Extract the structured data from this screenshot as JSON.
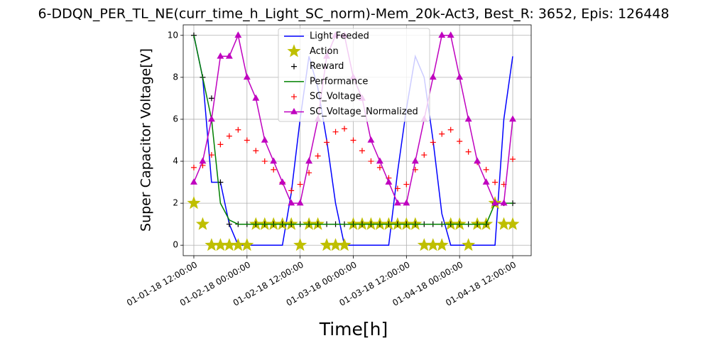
{
  "chart_data": {
    "type": "line",
    "title": "6-DDQN_PER_TL_NE(curr_time_h_Light_SC_norm)-Mem_20k-Act3, Best_R: 3652, Epis: 126448",
    "x_label": "Time[h]",
    "y_label": "Super Capacitor Voltage[V]",
    "x": [
      "01-01-18 12:00:00",
      "01-01-18 14:00:00",
      "01-01-18 16:00:00",
      "01-01-18 18:00:00",
      "01-01-18 20:00:00",
      "01-01-18 22:00:00",
      "01-02-18 00:00:00",
      "01-02-18 02:00:00",
      "01-02-18 04:00:00",
      "01-02-18 06:00:00",
      "01-02-18 08:00:00",
      "01-02-18 10:00:00",
      "01-02-18 12:00:00",
      "01-02-18 14:00:00",
      "01-02-18 16:00:00",
      "01-02-18 18:00:00",
      "01-02-18 20:00:00",
      "01-02-18 22:00:00",
      "01-03-18 00:00:00",
      "01-03-18 02:00:00",
      "01-03-18 04:00:00",
      "01-03-18 06:00:00",
      "01-03-18 08:00:00",
      "01-03-18 10:00:00",
      "01-03-18 12:00:00",
      "01-03-18 14:00:00",
      "01-03-18 16:00:00",
      "01-03-18 18:00:00",
      "01-03-18 20:00:00",
      "01-03-18 22:00:00",
      "01-04-18 00:00:00",
      "01-04-18 02:00:00",
      "01-04-18 04:00:00",
      "01-04-18 06:00:00",
      "01-04-18 08:00:00",
      "01-04-18 10:00:00",
      "01-04-18 12:00:00"
    ],
    "series": [
      {
        "name": "Light Feeded",
        "color": "#0000ff",
        "style": "line",
        "values": [
          10,
          8,
          3,
          3,
          1,
          0,
          0,
          0,
          0,
          0,
          0,
          2.5,
          6,
          9,
          7.5,
          5,
          2,
          0,
          0,
          0,
          0,
          0,
          0,
          3.5,
          6.5,
          9,
          8,
          5,
          1.5,
          0,
          0,
          0,
          0,
          0,
          0,
          6,
          9
        ]
      },
      {
        "name": "Action",
        "color": "#bfbf00",
        "style": "star",
        "values": [
          2,
          1,
          0,
          0,
          0,
          0,
          0,
          1,
          1,
          1,
          1,
          1,
          0,
          1,
          1,
          0,
          0,
          0,
          1,
          1,
          1,
          1,
          1,
          1,
          1,
          1,
          0,
          0,
          0,
          1,
          1,
          0,
          1,
          1,
          2,
          1,
          1
        ]
      },
      {
        "name": "Reward",
        "color": "#000000",
        "style": "plus",
        "values": [
          10,
          8,
          7,
          3,
          1,
          1,
          1,
          1,
          1,
          1,
          1,
          1,
          1,
          1,
          1,
          1,
          1,
          1,
          1,
          1,
          1,
          1,
          1,
          1,
          1,
          1,
          1,
          1,
          1,
          1,
          1,
          1,
          1,
          1,
          2,
          2,
          2
        ]
      },
      {
        "name": "Performance",
        "color": "#008000",
        "style": "line",
        "values": [
          10,
          8,
          6,
          2,
          1.2,
          1,
          1,
          1,
          1,
          1,
          1,
          1,
          1,
          1,
          1,
          1,
          1,
          1,
          1,
          1,
          1,
          1,
          1,
          1,
          1,
          1,
          1,
          1,
          1,
          1,
          1,
          1,
          1,
          1,
          2,
          2,
          2
        ]
      },
      {
        "name": "SC_Voltage",
        "color": "#ff0000",
        "style": "plus",
        "values": [
          3.7,
          3.8,
          4.3,
          4.8,
          5.2,
          5.5,
          5.0,
          4.5,
          4.0,
          3.6,
          3.0,
          2.6,
          2.9,
          3.45,
          4.25,
          4.9,
          5.4,
          5.55,
          5.0,
          4.5,
          4.0,
          3.7,
          3.2,
          2.7,
          2.9,
          3.6,
          4.3,
          4.9,
          5.3,
          5.5,
          4.95,
          4.45,
          3.95,
          3.6,
          3.0,
          2.9,
          4.1
        ]
      },
      {
        "name": "SC_Voltage_Normalized",
        "color": "#bf00bf",
        "style": "line-triangle",
        "values": [
          3,
          4,
          6,
          9,
          9,
          10,
          8,
          7,
          5,
          4,
          3,
          2,
          2,
          4,
          6,
          9,
          10,
          10,
          8,
          7,
          5,
          4,
          3,
          2,
          2,
          4,
          6,
          8,
          10,
          10,
          8,
          6,
          4,
          3,
          2,
          2,
          6
        ]
      }
    ],
    "xlim": [
      "01-01-18 09:36:00",
      "01-04-18 16:10:00"
    ],
    "xticks": [
      "01-01-18 12:00:00",
      "01-02-18 00:00:00",
      "01-02-18 12:00:00",
      "01-03-18 00:00:00",
      "01-03-18 12:00:00",
      "01-04-18 00:00:00",
      "01-04-18 12:00:00"
    ],
    "ylim": [
      -0.5,
      10.5
    ],
    "yticks": [
      0,
      2,
      4,
      6,
      8,
      10
    ],
    "grid": true,
    "legend": "upper center"
  }
}
